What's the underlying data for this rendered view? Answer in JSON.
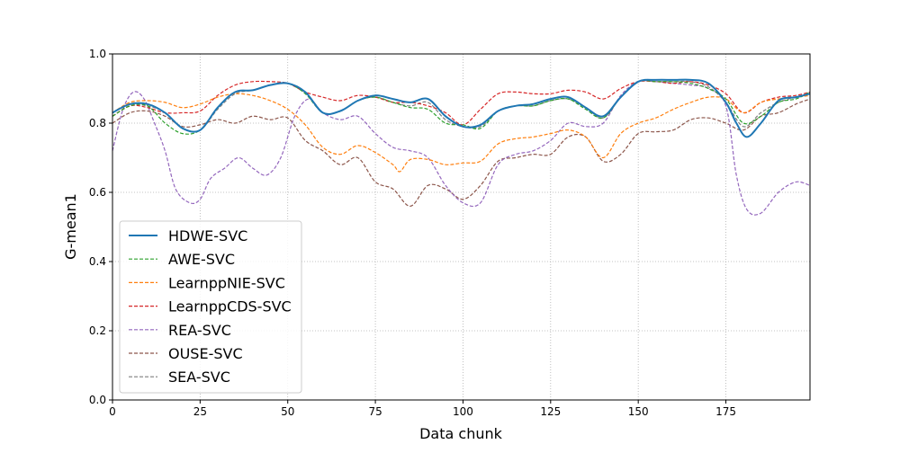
{
  "chart_data": {
    "type": "line",
    "title": "",
    "xlabel": "Data chunk",
    "ylabel": "G-mean1",
    "xlim": [
      0,
      199
    ],
    "ylim": [
      0.0,
      1.0
    ],
    "xticks": [
      "0",
      "25",
      "50",
      "75",
      "100",
      "125",
      "150",
      "175"
    ],
    "yticks": [
      "0.0",
      "0.2",
      "0.4",
      "0.6",
      "0.8",
      "1.0"
    ],
    "grid": true,
    "legend_position": "lower-left",
    "series": [
      {
        "name": "HDWE-SVC",
        "color": "#1f77b4",
        "style": "solid",
        "points": [
          [
            0,
            0.83
          ],
          [
            5,
            0.855
          ],
          [
            10,
            0.855
          ],
          [
            15,
            0.83
          ],
          [
            20,
            0.785
          ],
          [
            25,
            0.78
          ],
          [
            30,
            0.845
          ],
          [
            35,
            0.89
          ],
          [
            40,
            0.895
          ],
          [
            45,
            0.91
          ],
          [
            50,
            0.915
          ],
          [
            55,
            0.89
          ],
          [
            60,
            0.83
          ],
          [
            65,
            0.835
          ],
          [
            70,
            0.865
          ],
          [
            75,
            0.88
          ],
          [
            80,
            0.87
          ],
          [
            85,
            0.86
          ],
          [
            90,
            0.87
          ],
          [
            95,
            0.82
          ],
          [
            100,
            0.79
          ],
          [
            105,
            0.795
          ],
          [
            110,
            0.835
          ],
          [
            115,
            0.85
          ],
          [
            120,
            0.855
          ],
          [
            125,
            0.87
          ],
          [
            130,
            0.875
          ],
          [
            135,
            0.845
          ],
          [
            140,
            0.82
          ],
          [
            145,
            0.875
          ],
          [
            150,
            0.92
          ],
          [
            155,
            0.925
          ],
          [
            160,
            0.925
          ],
          [
            165,
            0.925
          ],
          [
            170,
            0.915
          ],
          [
            175,
            0.86
          ],
          [
            178,
            0.8
          ],
          [
            181,
            0.76
          ],
          [
            185,
            0.8
          ],
          [
            190,
            0.865
          ],
          [
            195,
            0.875
          ],
          [
            199,
            0.885
          ]
        ]
      },
      {
        "name": "AWE-SVC",
        "color": "#2ca02c",
        "style": "dashed",
        "points": [
          [
            0,
            0.82
          ],
          [
            5,
            0.85
          ],
          [
            10,
            0.85
          ],
          [
            15,
            0.8
          ],
          [
            20,
            0.77
          ],
          [
            25,
            0.78
          ],
          [
            30,
            0.845
          ],
          [
            35,
            0.89
          ],
          [
            40,
            0.895
          ],
          [
            45,
            0.91
          ],
          [
            50,
            0.915
          ],
          [
            55,
            0.885
          ],
          [
            60,
            0.83
          ],
          [
            65,
            0.835
          ],
          [
            70,
            0.865
          ],
          [
            75,
            0.875
          ],
          [
            80,
            0.86
          ],
          [
            85,
            0.845
          ],
          [
            90,
            0.84
          ],
          [
            95,
            0.8
          ],
          [
            100,
            0.795
          ],
          [
            105,
            0.785
          ],
          [
            110,
            0.835
          ],
          [
            115,
            0.85
          ],
          [
            120,
            0.85
          ],
          [
            125,
            0.865
          ],
          [
            130,
            0.87
          ],
          [
            135,
            0.84
          ],
          [
            140,
            0.815
          ],
          [
            145,
            0.875
          ],
          [
            150,
            0.92
          ],
          [
            155,
            0.92
          ],
          [
            160,
            0.92
          ],
          [
            165,
            0.915
          ],
          [
            170,
            0.9
          ],
          [
            175,
            0.87
          ],
          [
            180,
            0.8
          ],
          [
            185,
            0.82
          ],
          [
            190,
            0.86
          ],
          [
            195,
            0.87
          ],
          [
            199,
            0.89
          ]
        ]
      },
      {
        "name": "LearnppNIE-SVC",
        "color": "#ff7f0e",
        "style": "dashed",
        "points": [
          [
            0,
            0.83
          ],
          [
            5,
            0.86
          ],
          [
            10,
            0.865
          ],
          [
            15,
            0.86
          ],
          [
            20,
            0.845
          ],
          [
            25,
            0.855
          ],
          [
            30,
            0.875
          ],
          [
            35,
            0.885
          ],
          [
            40,
            0.88
          ],
          [
            45,
            0.865
          ],
          [
            50,
            0.84
          ],
          [
            55,
            0.795
          ],
          [
            60,
            0.73
          ],
          [
            65,
            0.71
          ],
          [
            70,
            0.735
          ],
          [
            75,
            0.715
          ],
          [
            80,
            0.68
          ],
          [
            82,
            0.66
          ],
          [
            85,
            0.695
          ],
          [
            90,
            0.695
          ],
          [
            95,
            0.68
          ],
          [
            100,
            0.685
          ],
          [
            105,
            0.69
          ],
          [
            110,
            0.74
          ],
          [
            115,
            0.755
          ],
          [
            120,
            0.76
          ],
          [
            125,
            0.77
          ],
          [
            130,
            0.78
          ],
          [
            135,
            0.76
          ],
          [
            140,
            0.7
          ],
          [
            145,
            0.77
          ],
          [
            150,
            0.8
          ],
          [
            155,
            0.815
          ],
          [
            160,
            0.84
          ],
          [
            165,
            0.86
          ],
          [
            170,
            0.875
          ],
          [
            175,
            0.87
          ],
          [
            180,
            0.83
          ],
          [
            185,
            0.86
          ],
          [
            190,
            0.87
          ],
          [
            195,
            0.875
          ],
          [
            199,
            0.88
          ]
        ]
      },
      {
        "name": "LearnppCDS-SVC",
        "color": "#d62728",
        "style": "dashed",
        "points": [
          [
            0,
            0.82
          ],
          [
            5,
            0.85
          ],
          [
            10,
            0.845
          ],
          [
            15,
            0.83
          ],
          [
            20,
            0.83
          ],
          [
            25,
            0.835
          ],
          [
            30,
            0.88
          ],
          [
            35,
            0.91
          ],
          [
            40,
            0.92
          ],
          [
            45,
            0.92
          ],
          [
            50,
            0.915
          ],
          [
            55,
            0.89
          ],
          [
            60,
            0.875
          ],
          [
            65,
            0.865
          ],
          [
            70,
            0.88
          ],
          [
            75,
            0.875
          ],
          [
            80,
            0.86
          ],
          [
            85,
            0.86
          ],
          [
            90,
            0.85
          ],
          [
            95,
            0.83
          ],
          [
            100,
            0.795
          ],
          [
            105,
            0.84
          ],
          [
            110,
            0.885
          ],
          [
            115,
            0.89
          ],
          [
            120,
            0.885
          ],
          [
            125,
            0.885
          ],
          [
            130,
            0.895
          ],
          [
            135,
            0.89
          ],
          [
            140,
            0.87
          ],
          [
            145,
            0.9
          ],
          [
            150,
            0.92
          ],
          [
            155,
            0.92
          ],
          [
            160,
            0.915
          ],
          [
            165,
            0.92
          ],
          [
            170,
            0.91
          ],
          [
            175,
            0.885
          ],
          [
            180,
            0.83
          ],
          [
            185,
            0.86
          ],
          [
            190,
            0.875
          ],
          [
            195,
            0.88
          ],
          [
            199,
            0.89
          ]
        ]
      },
      {
        "name": "REA-SVC",
        "color": "#9467bd",
        "style": "dashed",
        "points": [
          [
            0,
            0.72
          ],
          [
            3,
            0.84
          ],
          [
            6,
            0.89
          ],
          [
            9,
            0.87
          ],
          [
            12,
            0.8
          ],
          [
            15,
            0.72
          ],
          [
            18,
            0.61
          ],
          [
            22,
            0.57
          ],
          [
            25,
            0.58
          ],
          [
            28,
            0.64
          ],
          [
            32,
            0.67
          ],
          [
            36,
            0.7
          ],
          [
            40,
            0.67
          ],
          [
            44,
            0.65
          ],
          [
            48,
            0.7
          ],
          [
            52,
            0.82
          ],
          [
            56,
            0.87
          ],
          [
            60,
            0.83
          ],
          [
            65,
            0.81
          ],
          [
            70,
            0.82
          ],
          [
            75,
            0.77
          ],
          [
            80,
            0.73
          ],
          [
            85,
            0.72
          ],
          [
            90,
            0.7
          ],
          [
            95,
            0.62
          ],
          [
            100,
            0.57
          ],
          [
            105,
            0.57
          ],
          [
            110,
            0.68
          ],
          [
            115,
            0.71
          ],
          [
            120,
            0.72
          ],
          [
            125,
            0.75
          ],
          [
            130,
            0.8
          ],
          [
            135,
            0.79
          ],
          [
            140,
            0.8
          ],
          [
            145,
            0.88
          ],
          [
            150,
            0.92
          ],
          [
            155,
            0.92
          ],
          [
            160,
            0.915
          ],
          [
            165,
            0.91
          ],
          [
            170,
            0.9
          ],
          [
            175,
            0.85
          ],
          [
            178,
            0.65
          ],
          [
            181,
            0.55
          ],
          [
            185,
            0.54
          ],
          [
            190,
            0.6
          ],
          [
            195,
            0.63
          ],
          [
            199,
            0.62
          ]
        ]
      },
      {
        "name": "OUSE-SVC",
        "color": "#8c564b",
        "style": "dashed",
        "points": [
          [
            0,
            0.8
          ],
          [
            5,
            0.83
          ],
          [
            10,
            0.835
          ],
          [
            15,
            0.82
          ],
          [
            20,
            0.79
          ],
          [
            25,
            0.795
          ],
          [
            30,
            0.81
          ],
          [
            35,
            0.8
          ],
          [
            40,
            0.82
          ],
          [
            45,
            0.81
          ],
          [
            50,
            0.815
          ],
          [
            55,
            0.75
          ],
          [
            60,
            0.72
          ],
          [
            65,
            0.68
          ],
          [
            70,
            0.7
          ],
          [
            75,
            0.63
          ],
          [
            80,
            0.61
          ],
          [
            85,
            0.56
          ],
          [
            90,
            0.62
          ],
          [
            95,
            0.61
          ],
          [
            100,
            0.58
          ],
          [
            105,
            0.62
          ],
          [
            110,
            0.69
          ],
          [
            115,
            0.7
          ],
          [
            120,
            0.71
          ],
          [
            125,
            0.71
          ],
          [
            130,
            0.76
          ],
          [
            135,
            0.76
          ],
          [
            140,
            0.69
          ],
          [
            145,
            0.71
          ],
          [
            150,
            0.77
          ],
          [
            155,
            0.775
          ],
          [
            160,
            0.78
          ],
          [
            165,
            0.81
          ],
          [
            170,
            0.815
          ],
          [
            175,
            0.8
          ],
          [
            180,
            0.78
          ],
          [
            185,
            0.82
          ],
          [
            190,
            0.83
          ],
          [
            195,
            0.855
          ],
          [
            199,
            0.87
          ]
        ]
      },
      {
        "name": "SEA-SVC",
        "color": "#7f7f7f",
        "style": "dashed",
        "points": [
          [
            0,
            0.82
          ],
          [
            5,
            0.85
          ],
          [
            10,
            0.85
          ],
          [
            15,
            0.83
          ],
          [
            20,
            0.785
          ],
          [
            25,
            0.78
          ],
          [
            30,
            0.84
          ],
          [
            35,
            0.885
          ],
          [
            40,
            0.895
          ],
          [
            45,
            0.91
          ],
          [
            50,
            0.915
          ],
          [
            55,
            0.89
          ],
          [
            60,
            0.83
          ],
          [
            65,
            0.835
          ],
          [
            70,
            0.865
          ],
          [
            75,
            0.875
          ],
          [
            80,
            0.86
          ],
          [
            85,
            0.85
          ],
          [
            90,
            0.86
          ],
          [
            95,
            0.81
          ],
          [
            100,
            0.79
          ],
          [
            105,
            0.79
          ],
          [
            110,
            0.835
          ],
          [
            115,
            0.85
          ],
          [
            120,
            0.85
          ],
          [
            125,
            0.865
          ],
          [
            130,
            0.87
          ],
          [
            135,
            0.845
          ],
          [
            140,
            0.815
          ],
          [
            145,
            0.875
          ],
          [
            150,
            0.92
          ],
          [
            155,
            0.92
          ],
          [
            160,
            0.92
          ],
          [
            165,
            0.92
          ],
          [
            170,
            0.905
          ],
          [
            175,
            0.86
          ],
          [
            180,
            0.79
          ],
          [
            185,
            0.83
          ],
          [
            190,
            0.86
          ],
          [
            195,
            0.875
          ],
          [
            199,
            0.885
          ]
        ]
      }
    ]
  }
}
